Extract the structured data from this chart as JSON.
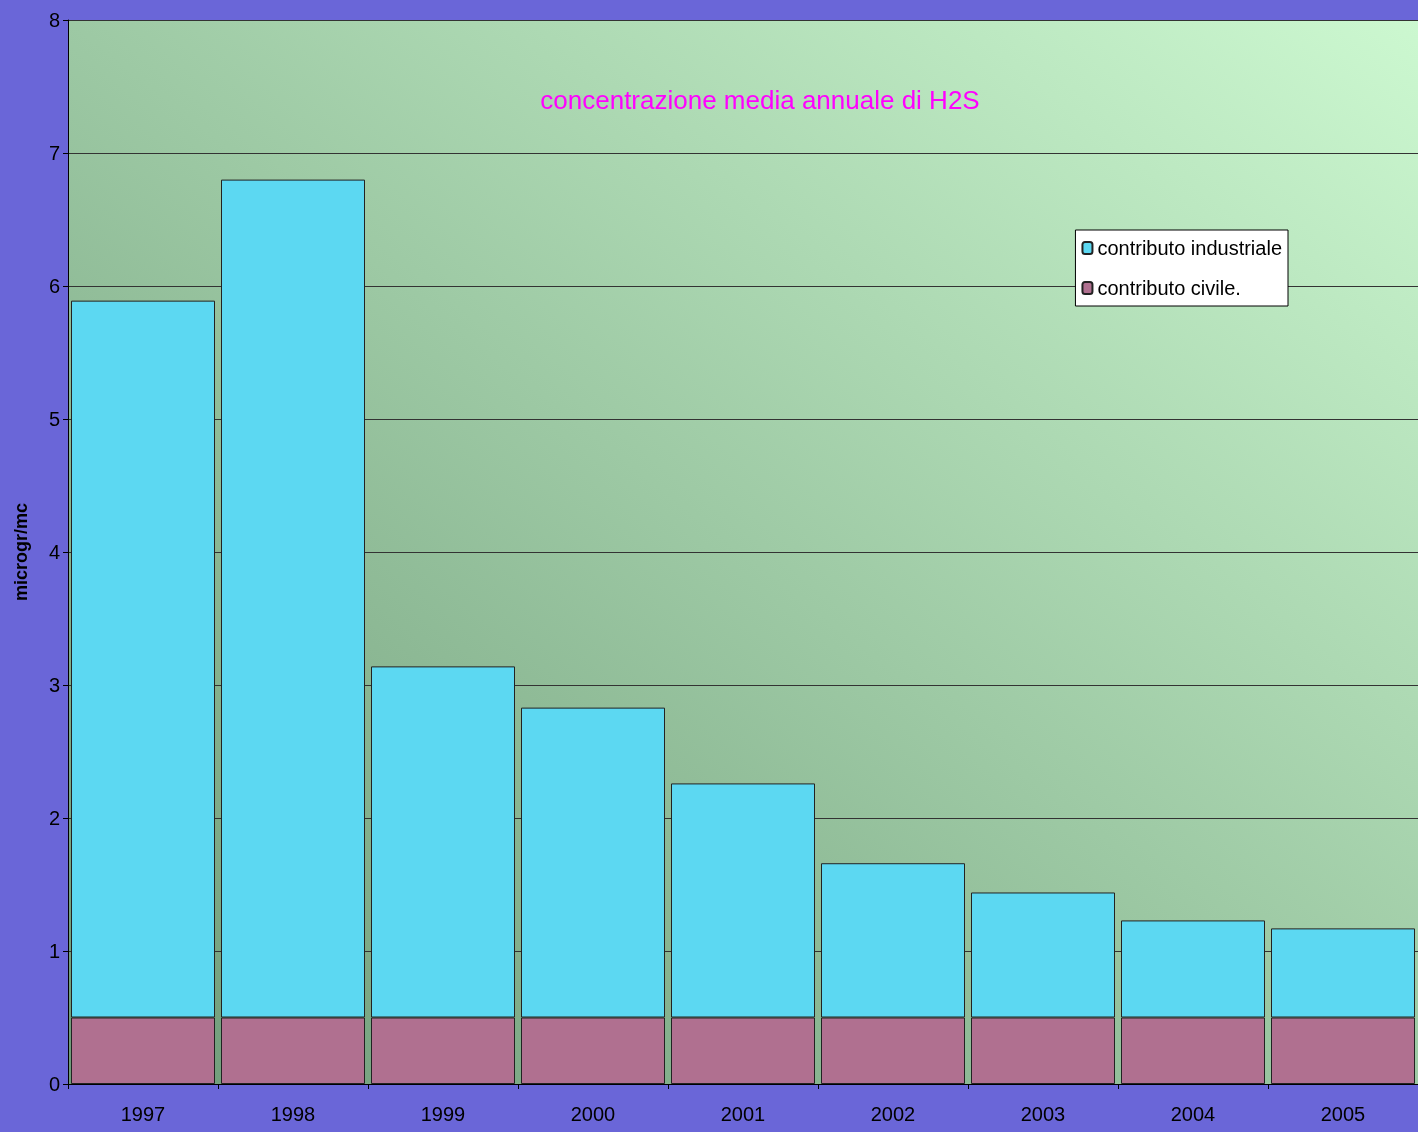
{
  "chart_data": {
    "type": "bar",
    "title": "concentrazione media annuale di H2S",
    "ylabel": "microgr/mc",
    "stacked": true,
    "categories": [
      "1997",
      "1998",
      "1999",
      "2000",
      "2001",
      "2002",
      "2003",
      "2004",
      "2005"
    ],
    "series": [
      {
        "name": "contributo civile.",
        "color": "#b07090",
        "values": [
          0.5,
          0.5,
          0.5,
          0.5,
          0.5,
          0.5,
          0.5,
          0.5,
          0.5
        ]
      },
      {
        "name": "contributo industriale",
        "color": "#5cd8f2",
        "values": [
          5.39,
          6.3,
          2.64,
          2.33,
          1.76,
          1.16,
          0.94,
          0.73,
          0.67
        ]
      }
    ],
    "ylim": [
      0,
      8
    ],
    "yticks": [
      0,
      1,
      2,
      3,
      4,
      5,
      6,
      7,
      8
    ],
    "grid": "y",
    "legend": "top right"
  }
}
